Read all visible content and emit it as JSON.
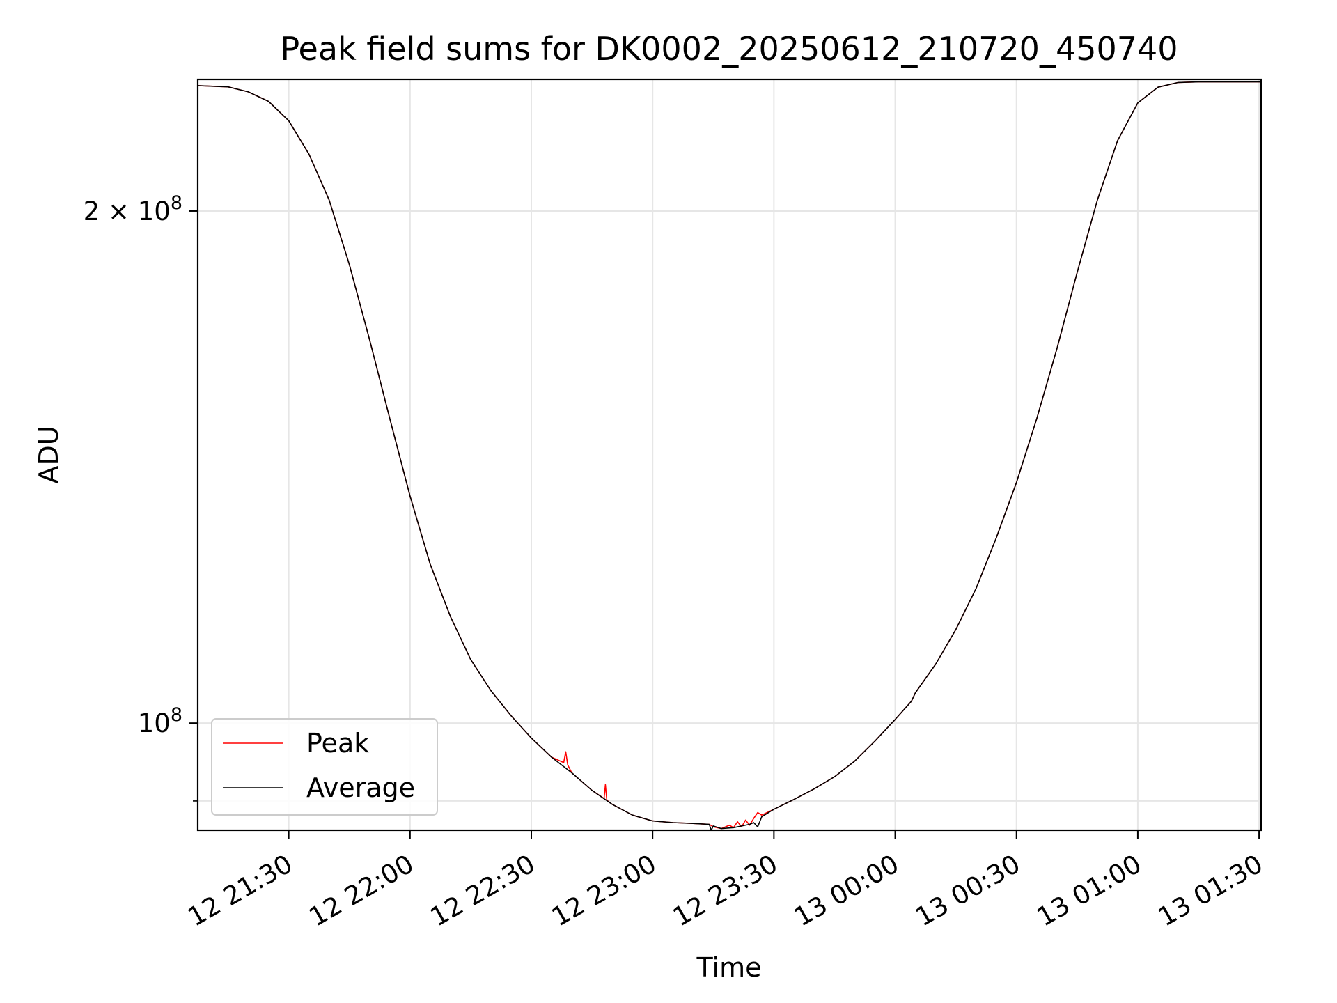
{
  "chart_data": {
    "type": "line",
    "title": "Peak field sums for DK0002_20250612_210720_450740",
    "xlabel": "Time",
    "ylabel": "ADU",
    "yscale": "log",
    "xlim": [
      "12 21:07:30",
      "13 01:30:30"
    ],
    "ylim": [
      86500000,
      239000000
    ],
    "grid": true,
    "legend_position": "lower-left",
    "x_ticks": [
      {
        "time": "12 21:30",
        "label": "12 21:30"
      },
      {
        "time": "12 22:00",
        "label": "12 22:00"
      },
      {
        "time": "12 22:30",
        "label": "12 22:30"
      },
      {
        "time": "12 23:00",
        "label": "12 23:00"
      },
      {
        "time": "12 23:30",
        "label": "12 23:30"
      },
      {
        "time": "13 00:00",
        "label": "13 00:00"
      },
      {
        "time": "13 00:30",
        "label": "13 00:30"
      },
      {
        "time": "13 01:00",
        "label": "13 01:00"
      },
      {
        "time": "13 01:30",
        "label": "13 01:30"
      }
    ],
    "y_ticks_major": [
      {
        "value": 100000000,
        "base": "10",
        "exp": "8"
      },
      {
        "value": 200000000,
        "base": "2 × 10",
        "exp": "8"
      }
    ],
    "y_ticks_minor": [
      90000000
    ],
    "series": [
      {
        "name": "Peak",
        "color": "#ff0000",
        "points": [
          [
            "12 21:07:30",
            237000000
          ],
          [
            "12 21:15",
            236600000
          ],
          [
            "12 21:20",
            235000000
          ],
          [
            "12 21:25",
            232000000
          ],
          [
            "12 21:30",
            226000000
          ],
          [
            "12 21:35",
            216000000
          ],
          [
            "12 21:40",
            203000000
          ],
          [
            "12 21:45",
            186000000
          ],
          [
            "12 21:50",
            168000000
          ],
          [
            "12 21:55",
            151000000
          ],
          [
            "12 22:00",
            136000000
          ],
          [
            "12 22:05",
            124000000
          ],
          [
            "12 22:10",
            115500000
          ],
          [
            "12 22:15",
            109000000
          ],
          [
            "12 22:20",
            104500000
          ],
          [
            "12 22:25",
            101000000
          ],
          [
            "12 22:30",
            98000000
          ],
          [
            "12 22:35",
            95500000
          ],
          [
            "12 22:38",
            94800000
          ],
          [
            "12 22:38:30",
            96200000
          ],
          [
            "12 22:39",
            94500000
          ],
          [
            "12 22:40",
            93500000
          ],
          [
            "12 22:45",
            91300000
          ],
          [
            "12 22:48",
            90300000
          ],
          [
            "12 22:48:20",
            92000000
          ],
          [
            "12 22:48:40",
            90100000
          ],
          [
            "12 22:50",
            89600000
          ],
          [
            "12 22:55",
            88300000
          ],
          [
            "12 23:00",
            87600000
          ],
          [
            "12 23:05",
            87400000
          ],
          [
            "12 23:10",
            87300000
          ],
          [
            "12 23:14",
            87200000
          ],
          [
            "12 23:15",
            86900000
          ],
          [
            "12 23:17",
            86700000
          ],
          [
            "12 23:19",
            87100000
          ],
          [
            "12 23:20",
            86800000
          ],
          [
            "12 23:21",
            87500000
          ],
          [
            "12 23:22",
            86900000
          ],
          [
            "12 23:23",
            87700000
          ],
          [
            "12 23:24",
            87100000
          ],
          [
            "12 23:25",
            87900000
          ],
          [
            "12 23:26",
            88600000
          ],
          [
            "12 23:27",
            88300000
          ],
          [
            "12 23:30",
            89000000
          ],
          [
            "12 23:35",
            90200000
          ],
          [
            "12 23:40",
            91500000
          ],
          [
            "12 23:45",
            93000000
          ],
          [
            "12 23:50",
            95000000
          ],
          [
            "12 23:55",
            97600000
          ],
          [
            "13 00:00",
            100500000
          ],
          [
            "13 00:04",
            103000000
          ],
          [
            "13 00:05",
            104200000
          ],
          [
            "13 00:10",
            108300000
          ],
          [
            "13 00:15",
            113500000
          ],
          [
            "13 00:20",
            120000000
          ],
          [
            "13 00:25",
            128500000
          ],
          [
            "13 00:30",
            138500000
          ],
          [
            "13 00:35",
            151000000
          ],
          [
            "13 00:40",
            166000000
          ],
          [
            "13 00:45",
            184000000
          ],
          [
            "13 00:50",
            203000000
          ],
          [
            "13 00:55",
            220000000
          ],
          [
            "13 01:00",
            231500000
          ],
          [
            "13 01:05",
            236500000
          ],
          [
            "13 01:10",
            238000000
          ],
          [
            "13 01:15",
            238200000
          ],
          [
            "13 01:30:30",
            238200000
          ]
        ]
      },
      {
        "name": "Average",
        "color": "#000000",
        "points": [
          [
            "12 21:07:30",
            237000000
          ],
          [
            "12 21:15",
            236600000
          ],
          [
            "12 21:20",
            235000000
          ],
          [
            "12 21:25",
            232000000
          ],
          [
            "12 21:30",
            226000000
          ],
          [
            "12 21:35",
            216000000
          ],
          [
            "12 21:40",
            203000000
          ],
          [
            "12 21:45",
            186000000
          ],
          [
            "12 21:50",
            168000000
          ],
          [
            "12 21:55",
            151000000
          ],
          [
            "12 22:00",
            136000000
          ],
          [
            "12 22:05",
            124000000
          ],
          [
            "12 22:10",
            115500000
          ],
          [
            "12 22:15",
            109000000
          ],
          [
            "12 22:20",
            104500000
          ],
          [
            "12 22:25",
            101000000
          ],
          [
            "12 22:30",
            98000000
          ],
          [
            "12 22:35",
            95500000
          ],
          [
            "12 22:40",
            93500000
          ],
          [
            "12 22:45",
            91300000
          ],
          [
            "12 22:50",
            89600000
          ],
          [
            "12 22:55",
            88300000
          ],
          [
            "12 23:00",
            87600000
          ],
          [
            "12 23:05",
            87400000
          ],
          [
            "12 23:10",
            87300000
          ],
          [
            "12 23:14",
            87200000
          ],
          [
            "12 23:14:30",
            86500000
          ],
          [
            "12 23:15",
            87000000
          ],
          [
            "12 23:17",
            86700000
          ],
          [
            "12 23:20",
            86800000
          ],
          [
            "12 23:22",
            87000000
          ],
          [
            "12 23:24",
            87200000
          ],
          [
            "12 23:25",
            87400000
          ],
          [
            "12 23:26",
            86900000
          ],
          [
            "12 23:27",
            88100000
          ],
          [
            "12 23:30",
            89000000
          ],
          [
            "12 23:35",
            90200000
          ],
          [
            "12 23:40",
            91500000
          ],
          [
            "12 23:45",
            93000000
          ],
          [
            "12 23:50",
            95000000
          ],
          [
            "12 23:55",
            97600000
          ],
          [
            "13 00:00",
            100500000
          ],
          [
            "13 00:04",
            103000000
          ],
          [
            "13 00:05",
            104200000
          ],
          [
            "13 00:10",
            108300000
          ],
          [
            "13 00:15",
            113500000
          ],
          [
            "13 00:20",
            120000000
          ],
          [
            "13 00:25",
            128500000
          ],
          [
            "13 00:30",
            138500000
          ],
          [
            "13 00:35",
            151000000
          ],
          [
            "13 00:40",
            166000000
          ],
          [
            "13 00:45",
            184000000
          ],
          [
            "13 00:50",
            203000000
          ],
          [
            "13 00:55",
            220000000
          ],
          [
            "13 01:00",
            231500000
          ],
          [
            "13 01:05",
            236500000
          ],
          [
            "13 01:10",
            238000000
          ],
          [
            "13 01:15",
            238200000
          ],
          [
            "13 01:30:30",
            238200000
          ]
        ]
      }
    ]
  }
}
